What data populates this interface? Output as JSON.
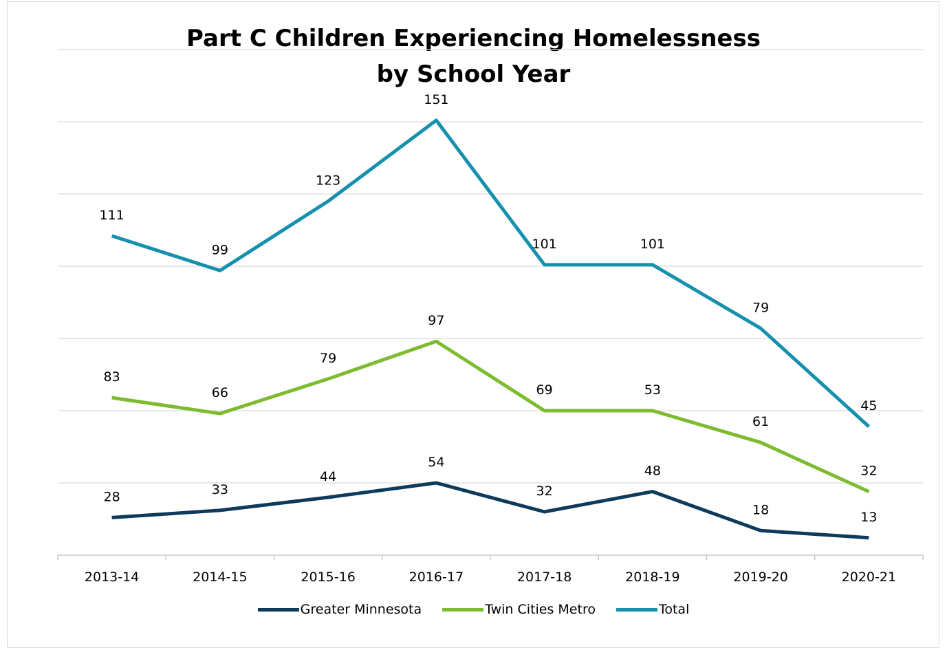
{
  "chart_data": {
    "type": "line",
    "title_line1": "Part C Children Experiencing Homelessness",
    "title_line2": "by School Year",
    "categories": [
      "2013-14",
      "2014-15",
      "2015-16",
      "2016-17",
      "2017-18",
      "2018-19",
      "2019-20",
      "2020-21"
    ],
    "series": [
      {
        "name": "Greater Minnesota",
        "color": "#0e3a5c",
        "values": [
          28,
          33,
          44,
          54,
          32,
          48,
          18,
          13
        ],
        "plot_values": [
          26,
          31,
          40,
          50,
          30,
          44,
          17,
          12
        ]
      },
      {
        "name": "Twin Cities Metro",
        "color": "#7dbb2f",
        "values": [
          83,
          66,
          79,
          97,
          69,
          53,
          61,
          32
        ],
        "plot_values": [
          109,
          98,
          122,
          148,
          100,
          100,
          78,
          44
        ]
      },
      {
        "name": "Total",
        "color": "#1590ad",
        "values": [
          111,
          99,
          123,
          151,
          101,
          101,
          79,
          45
        ],
        "plot_values": [
          221,
          197,
          245,
          301,
          201,
          201,
          157,
          89
        ]
      }
    ],
    "ylim": [
      0,
      350
    ],
    "gridline_step": 50,
    "grid": true,
    "legend_position": "bottom",
    "xlabel": "",
    "ylabel": ""
  }
}
